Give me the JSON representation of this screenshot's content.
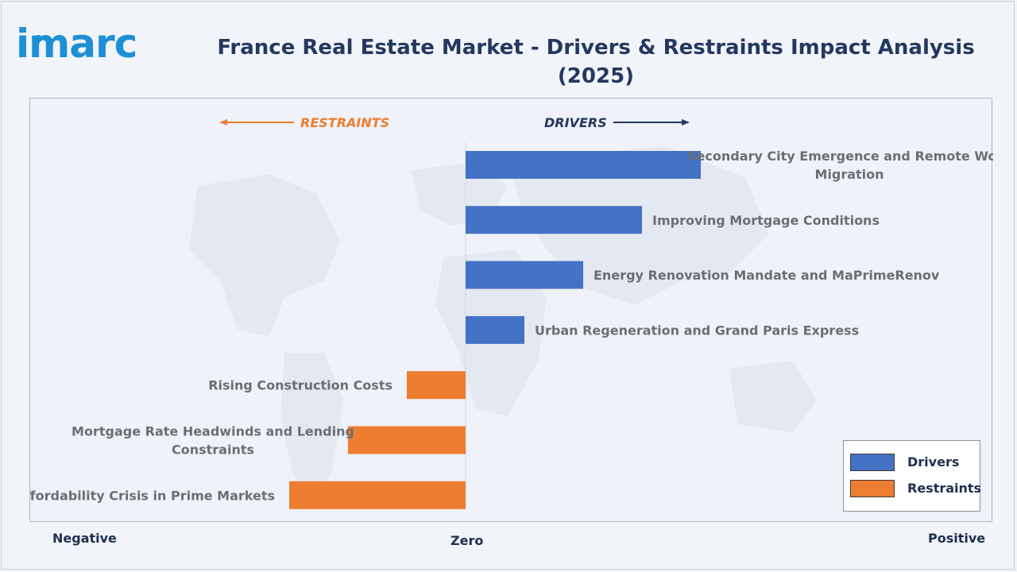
{
  "logo": {
    "text": "imarc"
  },
  "title": "France Real Estate Market - Drivers & Restraints Impact Analysis (2025)",
  "colors": {
    "drivers": "#4472c4",
    "restraints": "#ed7d31",
    "restraints_text": "#ed7d31",
    "drivers_text": "#24385f"
  },
  "direction_labels": {
    "restraints": "RESTRAINTS",
    "drivers": "DRIVERS"
  },
  "axis_labels": {
    "negative": "Negative",
    "zero": "Zero",
    "positive": "Positive"
  },
  "legend": {
    "drivers": "Drivers",
    "restraints": "Restraints"
  },
  "chart_data": {
    "type": "bar",
    "orientation": "horizontal",
    "title": "France Real Estate Market - Drivers & Restraints Impact Analysis (2025)",
    "xlim": [
      -3,
      4
    ],
    "grid": false,
    "legend_position": "bottom-right",
    "categories": [
      [
        "Secondary City Emergence and Remote Work",
        "Migration"
      ],
      [
        "Improving Mortgage Conditions"
      ],
      [
        "Energy Renovation Mandate and MaPrimeRenov"
      ],
      [
        "Urban Regeneration and Grand Paris Express"
      ],
      [
        "Rising Construction Costs"
      ],
      [
        "Mortgage Rate Headwinds and Lending",
        "Constraints"
      ],
      [
        "Affordability Crisis in Prime Markets"
      ]
    ],
    "series": [
      {
        "name": "Drivers",
        "values": [
          4,
          3,
          2,
          1,
          0,
          0,
          0
        ]
      },
      {
        "name": "Restraints",
        "values": [
          0,
          0,
          0,
          0,
          -1,
          -2,
          -3
        ]
      }
    ]
  }
}
